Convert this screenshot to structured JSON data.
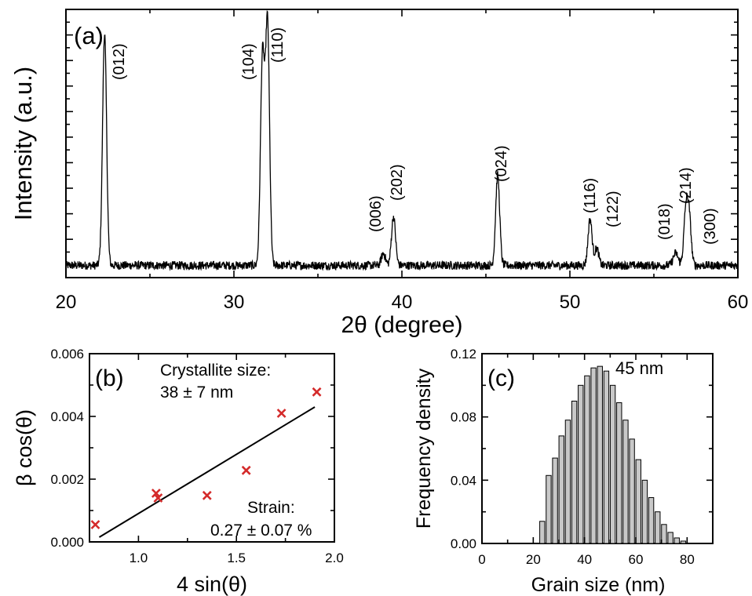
{
  "chart_data": [
    {
      "panel": "(a)",
      "type": "line",
      "xlabel": "2θ (degree)",
      "ylabel": "Intensity (a.u.)",
      "xlim": [
        20,
        60
      ],
      "xticks": [
        "20",
        "30",
        "40",
        "50",
        "60"
      ],
      "ylim": [
        0,
        1.1
      ],
      "y_tick_labels": "none",
      "grid": false,
      "legend": "none",
      "line_color": "#000000",
      "baseline": 0.05,
      "peaks": [
        {
          "label": "(012)",
          "x": 22.3,
          "height": 1.0,
          "width": 0.12
        },
        {
          "label": "(104)",
          "x": 31.7,
          "height": 0.9,
          "width": 0.12
        },
        {
          "label": "(110)",
          "x": 32.0,
          "height": 1.04,
          "width": 0.12
        },
        {
          "label": "(006)",
          "x": 38.9,
          "height": 0.1,
          "width": 0.12
        },
        {
          "label": "(202)",
          "x": 39.5,
          "height": 0.25,
          "width": 0.12
        },
        {
          "label": "(024)",
          "x": 45.7,
          "height": 0.42,
          "width": 0.12
        },
        {
          "label": "(116)",
          "x": 51.2,
          "height": 0.24,
          "width": 0.12
        },
        {
          "label": "(122)",
          "x": 51.6,
          "height": 0.12,
          "width": 0.12
        },
        {
          "label": "(018)",
          "x": 56.3,
          "height": 0.1,
          "width": 0.15
        },
        {
          "label": "(214)",
          "x": 56.9,
          "height": 0.26,
          "width": 0.12
        },
        {
          "label": "(300)",
          "x": 57.1,
          "height": 0.24,
          "width": 0.12
        }
      ]
    },
    {
      "panel": "(b)",
      "type": "scatter",
      "xlabel": "4 sin(θ)",
      "ylabel": "β cos(θ)",
      "xlim": [
        0.75,
        2.0
      ],
      "ylim": [
        0.0,
        0.006
      ],
      "xticks": [
        "1.0",
        "1.5",
        "2.0"
      ],
      "yticks": [
        "0.000",
        "0.002",
        "0.004",
        "0.006"
      ],
      "grid": false,
      "marker_color": "#d42a2a",
      "points": [
        {
          "x": 0.78,
          "y": 0.00055
        },
        {
          "x": 1.09,
          "y": 0.00155
        },
        {
          "x": 1.1,
          "y": 0.0014
        },
        {
          "x": 1.35,
          "y": 0.00148
        },
        {
          "x": 1.55,
          "y": 0.00228
        },
        {
          "x": 1.73,
          "y": 0.0041
        },
        {
          "x": 1.91,
          "y": 0.00478
        }
      ],
      "fit_line": {
        "x": [
          0.8,
          1.9
        ],
        "y": [
          0.00015,
          0.0043
        ]
      },
      "annotations": {
        "size_title": "Crystallite size:",
        "size_value": "38 ± 7 nm",
        "strain_title": "Strain:",
        "strain_value": "0.27 ± 0.07 %"
      }
    },
    {
      "panel": "(c)",
      "type": "bar",
      "xlabel": "Grain size (nm)",
      "ylabel": "Frequency density",
      "xlim": [
        0,
        90
      ],
      "ylim": [
        0,
        0.12
      ],
      "xticks": [
        "0",
        "20",
        "40",
        "60",
        "80"
      ],
      "yticks": [
        "0.00",
        "0.04",
        "0.08",
        "0.12"
      ],
      "grid": false,
      "bar_color": "#c8c8c8",
      "bar_edge_color": "#000000",
      "bin_width": 2.5,
      "bin_centers": [
        23.5,
        26,
        28.5,
        31,
        33.5,
        36,
        38.5,
        41,
        43.5,
        46,
        48.5,
        51,
        53.5,
        56,
        58.5,
        61,
        63.5,
        66,
        68.5,
        71,
        73.5,
        76,
        78.5
      ],
      "values": [
        0.014,
        0.043,
        0.054,
        0.068,
        0.078,
        0.09,
        0.1,
        0.106,
        0.111,
        0.112,
        0.109,
        0.1,
        0.089,
        0.078,
        0.066,
        0.053,
        0.04,
        0.029,
        0.02,
        0.012,
        0.007,
        0.0035,
        0.0015
      ],
      "annotation": "45 nm"
    }
  ]
}
